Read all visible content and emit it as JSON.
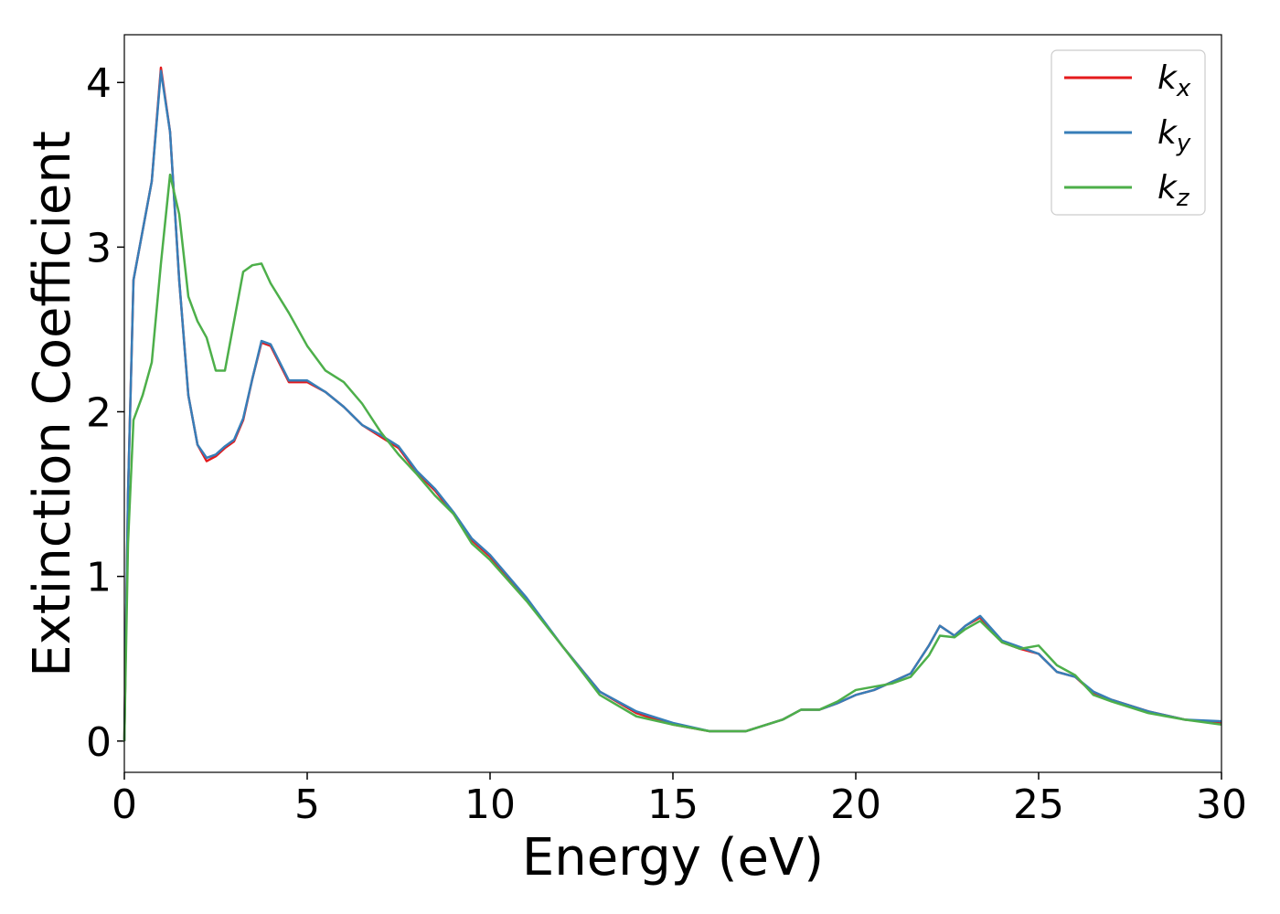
{
  "chart_data": {
    "type": "line",
    "xlabel": "Energy (eV)",
    "ylabel": "Extinction Coefficient",
    "xlim": [
      0,
      30
    ],
    "ylim": [
      -0.19,
      4.29
    ],
    "xticks": [
      0,
      5,
      10,
      15,
      20,
      25,
      30
    ],
    "yticks": [
      0,
      1,
      2,
      3,
      4
    ],
    "legend": "upper right",
    "x": [
      0,
      0.1,
      0.25,
      0.5,
      0.75,
      1,
      1.25,
      1.5,
      1.75,
      2,
      2.25,
      2.5,
      2.75,
      3,
      3.25,
      3.5,
      3.75,
      4,
      4.5,
      5,
      5.5,
      6,
      6.5,
      7,
      7.5,
      8,
      8.5,
      9,
      9.5,
      10,
      11,
      12,
      13,
      14,
      15,
      16,
      17,
      18,
      18.5,
      19,
      19.5,
      20,
      20.5,
      21,
      21.5,
      22,
      22.3,
      22.7,
      23,
      23.4,
      24,
      24.5,
      25,
      25.5,
      26,
      26.5,
      27,
      28,
      29,
      30
    ],
    "series": [
      {
        "name": "kx",
        "color": "#e41a1c",
        "values": [
          0,
          1.5,
          2.8,
          3.1,
          3.4,
          4.09,
          3.7,
          2.8,
          2.1,
          1.8,
          1.7,
          1.73,
          1.78,
          1.82,
          1.95,
          2.2,
          2.42,
          2.4,
          2.18,
          2.18,
          2.12,
          2.03,
          1.92,
          1.85,
          1.78,
          1.63,
          1.52,
          1.38,
          1.22,
          1.12,
          0.86,
          0.57,
          0.3,
          0.17,
          0.1,
          0.06,
          0.06,
          0.13,
          0.19,
          0.19,
          0.23,
          0.28,
          0.31,
          0.36,
          0.41,
          0.58,
          0.7,
          0.64,
          0.7,
          0.75,
          0.6,
          0.56,
          0.53,
          0.42,
          0.39,
          0.29,
          0.25,
          0.18,
          0.13,
          0.11
        ]
      },
      {
        "name": "ky",
        "color": "#377eb8",
        "values": [
          0,
          1.5,
          2.8,
          3.1,
          3.4,
          4.07,
          3.7,
          2.8,
          2.1,
          1.8,
          1.72,
          1.74,
          1.79,
          1.83,
          1.96,
          2.2,
          2.43,
          2.41,
          2.19,
          2.19,
          2.12,
          2.03,
          1.92,
          1.86,
          1.79,
          1.64,
          1.53,
          1.39,
          1.23,
          1.13,
          0.87,
          0.57,
          0.3,
          0.18,
          0.11,
          0.06,
          0.06,
          0.13,
          0.19,
          0.19,
          0.23,
          0.28,
          0.31,
          0.36,
          0.41,
          0.58,
          0.7,
          0.64,
          0.7,
          0.76,
          0.61,
          0.57,
          0.53,
          0.42,
          0.39,
          0.3,
          0.25,
          0.18,
          0.13,
          0.12
        ]
      },
      {
        "name": "kz",
        "color": "#4daf4a",
        "values": [
          0,
          1.2,
          1.95,
          2.1,
          2.3,
          2.9,
          3.44,
          3.2,
          2.7,
          2.55,
          2.45,
          2.25,
          2.25,
          2.55,
          2.85,
          2.89,
          2.9,
          2.78,
          2.6,
          2.4,
          2.25,
          2.18,
          2.05,
          1.88,
          1.74,
          1.62,
          1.49,
          1.38,
          1.2,
          1.1,
          0.85,
          0.57,
          0.28,
          0.15,
          0.1,
          0.06,
          0.06,
          0.13,
          0.19,
          0.19,
          0.24,
          0.31,
          0.33,
          0.35,
          0.39,
          0.52,
          0.64,
          0.63,
          0.68,
          0.73,
          0.6,
          0.56,
          0.58,
          0.46,
          0.4,
          0.28,
          0.24,
          0.17,
          0.13,
          0.1
        ]
      }
    ]
  }
}
